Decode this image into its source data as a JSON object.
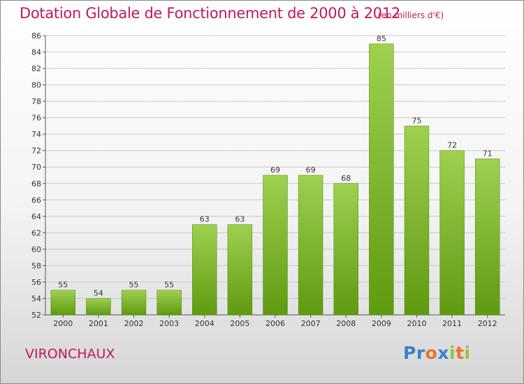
{
  "title": "Dotation Globale de Fonctionnement de 2000 à 2012",
  "unit": "(en milliers d'€)",
  "commune": "VIRONCHAUX",
  "logo": {
    "letters": [
      "P",
      "r",
      "o",
      "x",
      "i",
      "t",
      "i"
    ],
    "colors": [
      "#3a7fd0",
      "#3a7fd0",
      "#e8762b",
      "#3a7fd0",
      "#8cc63f",
      "#e8762b",
      "#8cc63f"
    ]
  },
  "colors": {
    "title": "#c2185b",
    "bar_top": "#9fd050",
    "bar_bottom": "#5f9a10",
    "grid": "#c8c8c8"
  },
  "chart_data": {
    "type": "bar",
    "categories": [
      "2000",
      "2001",
      "2002",
      "2003",
      "2004",
      "2005",
      "2006",
      "2007",
      "2008",
      "2009",
      "2010",
      "2011",
      "2012"
    ],
    "values": [
      55,
      54,
      55,
      55,
      63,
      63,
      69,
      69,
      68,
      85,
      75,
      72,
      71
    ],
    "ylim": [
      52,
      86
    ],
    "yticks": [
      52,
      54,
      56,
      58,
      60,
      62,
      64,
      66,
      68,
      70,
      72,
      74,
      76,
      78,
      80,
      82,
      84,
      86
    ],
    "grid": true
  }
}
